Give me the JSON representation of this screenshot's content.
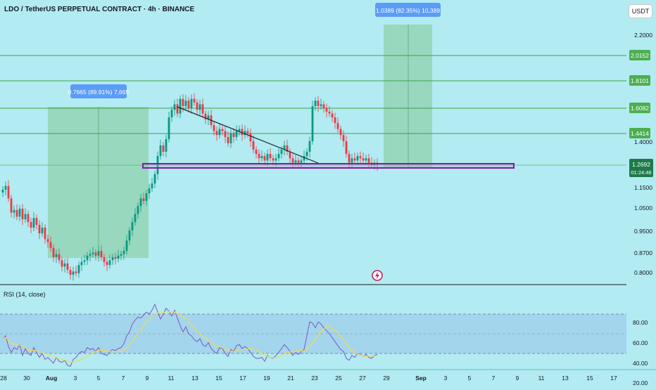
{
  "header": {
    "title": "LDO / TetherUS PERPETUAL CONTRACT · 4h · BINANCE",
    "currency": "USDT"
  },
  "colors": {
    "background": "#b2ebf2",
    "candle_up": "#089981",
    "candle_down": "#f23645",
    "level_line": "#43a047",
    "level_badge": "#4caf50",
    "measure_zone": "#81c995",
    "measure_badge": "#5b9cf6",
    "support_box": "#7b1fa2",
    "rsi_line": "#7e57c2",
    "rsi_ma": "#f5d94c"
  },
  "price_axis": {
    "ticks": [
      "2.2000",
      "1.4000",
      "1.1500",
      "1.0500",
      "0.9500",
      "0.8700",
      "0.8000"
    ],
    "levels": [
      "2.0152",
      "1.8101",
      "1.6082",
      "1.4414"
    ],
    "current_price": "1.2692",
    "countdown": "01:24:48"
  },
  "measures": [
    {
      "label": "0.7665 (89.91%) 7,665"
    },
    {
      "label": "1.0389 (82.35%) 10,389"
    }
  ],
  "rsi": {
    "label": "RSI (14, close)",
    "ticks": [
      "80.00",
      "60.00",
      "40.00",
      "20.00"
    ]
  },
  "time_axis": {
    "labels": [
      "28",
      "30",
      "Aug",
      "3",
      "5",
      "7",
      "9",
      "11",
      "13",
      "15",
      "17",
      "19",
      "21",
      "23",
      "25",
      "27",
      "29",
      "Sep",
      "3",
      "5",
      "7",
      "9",
      "11",
      "13",
      "15",
      "17"
    ]
  },
  "chart_data": {
    "type": "candlestick",
    "symbol": "LDO / TetherUS PERPETUAL CONTRACT",
    "interval": "4h",
    "exchange": "BINANCE",
    "y_scale": "log",
    "ylim": [
      0.78,
      2.45
    ],
    "support_zone": [
      1.255,
      1.285
    ],
    "resistance_levels": [
      2.0152,
      1.8101,
      1.6082,
      1.4414
    ],
    "trendline": [
      [
        252,
        1.66
      ],
      [
        452,
        1.275
      ]
    ],
    "measures": [
      {
        "x": [
          68,
          211
        ],
        "y": [
          0.85,
          1.615
        ],
        "change": 0.7665,
        "percent": 89.91
      },
      {
        "x": [
          545,
          614
        ],
        "y": [
          1.265,
          2.31
        ],
        "change": 1.0389,
        "percent": 82.35
      }
    ],
    "closes": [
      [
        4,
        1.165
      ],
      [
        8,
        1.18
      ],
      [
        12,
        1.13
      ],
      [
        16,
        1.075
      ],
      [
        20,
        1.085
      ],
      [
        24,
        1.06
      ],
      [
        28,
        1.09
      ],
      [
        32,
        1.05
      ],
      [
        36,
        1.07
      ],
      [
        40,
        1.04
      ],
      [
        44,
        1.02
      ],
      [
        48,
        1.055
      ],
      [
        52,
        1.03
      ],
      [
        56,
        1.0
      ],
      [
        60,
        1.02
      ],
      [
        64,
        0.98
      ],
      [
        68,
        0.97
      ],
      [
        72,
        0.95
      ],
      [
        76,
        0.92
      ],
      [
        80,
        0.93
      ],
      [
        84,
        0.91
      ],
      [
        88,
        0.89
      ],
      [
        92,
        0.9
      ],
      [
        96,
        0.88
      ],
      [
        100,
        0.865
      ],
      [
        104,
        0.875
      ],
      [
        108,
        0.87
      ],
      [
        112,
        0.895
      ],
      [
        116,
        0.905
      ],
      [
        120,
        0.91
      ],
      [
        124,
        0.925
      ],
      [
        128,
        0.93
      ],
      [
        132,
        0.935
      ],
      [
        136,
        0.925
      ],
      [
        140,
        0.94
      ],
      [
        144,
        0.92
      ],
      [
        148,
        0.905
      ],
      [
        152,
        0.895
      ],
      [
        156,
        0.91
      ],
      [
        160,
        0.92
      ],
      [
        164,
        0.915
      ],
      [
        168,
        0.925
      ],
      [
        172,
        0.93
      ],
      [
        176,
        0.94
      ],
      [
        180,
        0.975
      ],
      [
        184,
        1.01
      ],
      [
        188,
        1.04
      ],
      [
        192,
        1.07
      ],
      [
        196,
        1.1
      ],
      [
        200,
        1.13
      ],
      [
        204,
        1.12
      ],
      [
        208,
        1.15
      ],
      [
        212,
        1.17
      ],
      [
        216,
        1.19
      ],
      [
        220,
        1.23
      ],
      [
        224,
        1.31
      ],
      [
        228,
        1.36
      ],
      [
        232,
        1.33
      ],
      [
        236,
        1.39
      ],
      [
        240,
        1.5
      ],
      [
        244,
        1.54
      ],
      [
        248,
        1.57
      ],
      [
        252,
        1.52
      ],
      [
        256,
        1.6
      ],
      [
        260,
        1.56
      ],
      [
        264,
        1.59
      ],
      [
        268,
        1.55
      ],
      [
        272,
        1.6
      ],
      [
        276,
        1.58
      ],
      [
        280,
        1.54
      ],
      [
        284,
        1.57
      ],
      [
        288,
        1.52
      ],
      [
        292,
        1.49
      ],
      [
        296,
        1.51
      ],
      [
        300,
        1.46
      ],
      [
        304,
        1.43
      ],
      [
        308,
        1.41
      ],
      [
        312,
        1.44
      ],
      [
        316,
        1.43
      ],
      [
        320,
        1.4
      ],
      [
        324,
        1.37
      ],
      [
        328,
        1.42
      ],
      [
        332,
        1.4
      ],
      [
        336,
        1.43
      ],
      [
        340,
        1.44
      ],
      [
        344,
        1.41
      ],
      [
        348,
        1.43
      ],
      [
        352,
        1.42
      ],
      [
        356,
        1.38
      ],
      [
        360,
        1.34
      ],
      [
        364,
        1.32
      ],
      [
        368,
        1.3
      ],
      [
        372,
        1.31
      ],
      [
        376,
        1.29
      ],
      [
        380,
        1.32
      ],
      [
        384,
        1.3
      ],
      [
        388,
        1.29
      ],
      [
        392,
        1.3
      ],
      [
        396,
        1.32
      ],
      [
        400,
        1.34
      ],
      [
        404,
        1.36
      ],
      [
        408,
        1.33
      ],
      [
        412,
        1.3
      ],
      [
        416,
        1.28
      ],
      [
        420,
        1.29
      ],
      [
        424,
        1.28
      ],
      [
        428,
        1.29
      ],
      [
        432,
        1.31
      ],
      [
        436,
        1.33
      ],
      [
        440,
        1.38
      ],
      [
        444,
        1.56
      ],
      [
        448,
        1.59
      ],
      [
        452,
        1.56
      ],
      [
        456,
        1.57
      ],
      [
        460,
        1.55
      ],
      [
        464,
        1.53
      ],
      [
        468,
        1.52
      ],
      [
        472,
        1.5
      ],
      [
        476,
        1.47
      ],
      [
        480,
        1.44
      ],
      [
        484,
        1.41
      ],
      [
        488,
        1.38
      ],
      [
        492,
        1.32
      ],
      [
        496,
        1.28
      ],
      [
        500,
        1.3
      ],
      [
        504,
        1.29
      ],
      [
        508,
        1.31
      ],
      [
        512,
        1.3
      ],
      [
        516,
        1.29
      ],
      [
        520,
        1.3
      ],
      [
        524,
        1.28
      ],
      [
        528,
        1.27
      ],
      [
        532,
        1.28
      ],
      [
        536,
        1.27
      ]
    ],
    "rsi": [
      [
        4,
        55
      ],
      [
        8,
        58
      ],
      [
        12,
        47
      ],
      [
        16,
        41
      ],
      [
        20,
        46
      ],
      [
        24,
        44
      ],
      [
        28,
        49
      ],
      [
        32,
        38
      ],
      [
        36,
        45
      ],
      [
        40,
        40
      ],
      [
        44,
        38
      ],
      [
        48,
        46
      ],
      [
        52,
        41
      ],
      [
        56,
        36
      ],
      [
        60,
        40
      ],
      [
        64,
        34
      ],
      [
        68,
        36
      ],
      [
        72,
        33
      ],
      [
        76,
        30
      ],
      [
        80,
        36
      ],
      [
        84,
        32
      ],
      [
        88,
        31
      ],
      [
        92,
        33
      ],
      [
        96,
        28
      ],
      [
        100,
        27
      ],
      [
        104,
        34
      ],
      [
        108,
        36
      ],
      [
        112,
        40
      ],
      [
        116,
        42
      ],
      [
        120,
        41
      ],
      [
        124,
        46
      ],
      [
        128,
        44
      ],
      [
        132,
        45
      ],
      [
        136,
        42
      ],
      [
        140,
        46
      ],
      [
        144,
        40
      ],
      [
        148,
        39
      ],
      [
        152,
        38
      ],
      [
        156,
        42
      ],
      [
        160,
        44
      ],
      [
        164,
        43
      ],
      [
        168,
        45
      ],
      [
        172,
        46
      ],
      [
        176,
        50
      ],
      [
        180,
        58
      ],
      [
        184,
        62
      ],
      [
        188,
        70
      ],
      [
        192,
        74
      ],
      [
        196,
        77
      ],
      [
        200,
        76
      ],
      [
        204,
        79
      ],
      [
        208,
        82
      ],
      [
        212,
        80
      ],
      [
        216,
        84
      ],
      [
        220,
        90
      ],
      [
        224,
        82
      ],
      [
        228,
        75
      ],
      [
        232,
        80
      ],
      [
        236,
        86
      ],
      [
        240,
        83
      ],
      [
        244,
        78
      ],
      [
        248,
        84
      ],
      [
        252,
        76
      ],
      [
        256,
        68
      ],
      [
        260,
        62
      ],
      [
        264,
        67
      ],
      [
        268,
        60
      ],
      [
        272,
        58
      ],
      [
        276,
        54
      ],
      [
        280,
        52
      ],
      [
        284,
        55
      ],
      [
        288,
        49
      ],
      [
        292,
        47
      ],
      [
        296,
        51
      ],
      [
        300,
        45
      ],
      [
        304,
        42
      ],
      [
        308,
        40
      ],
      [
        312,
        46
      ],
      [
        316,
        45
      ],
      [
        320,
        40
      ],
      [
        324,
        37
      ],
      [
        328,
        44
      ],
      [
        332,
        42
      ],
      [
        336,
        48
      ],
      [
        340,
        49
      ],
      [
        344,
        45
      ],
      [
        348,
        47
      ],
      [
        352,
        45
      ],
      [
        356,
        41
      ],
      [
        360,
        37
      ],
      [
        364,
        35
      ],
      [
        368,
        35
      ],
      [
        372,
        36
      ],
      [
        376,
        32
      ],
      [
        380,
        38
      ],
      [
        384,
        36
      ],
      [
        388,
        35
      ],
      [
        392,
        38
      ],
      [
        396,
        41
      ],
      [
        400,
        45
      ],
      [
        404,
        49
      ],
      [
        408,
        46
      ],
      [
        412,
        42
      ],
      [
        416,
        38
      ],
      [
        420,
        41
      ],
      [
        424,
        39
      ],
      [
        428,
        42
      ],
      [
        432,
        44
      ],
      [
        436,
        58
      ],
      [
        440,
        72
      ],
      [
        444,
        71
      ],
      [
        448,
        66
      ],
      [
        452,
        72
      ],
      [
        456,
        70
      ],
      [
        460,
        66
      ],
      [
        464,
        63
      ],
      [
        468,
        60
      ],
      [
        472,
        56
      ],
      [
        476,
        52
      ],
      [
        480,
        48
      ],
      [
        484,
        44
      ],
      [
        488,
        42
      ],
      [
        492,
        35
      ],
      [
        496,
        33
      ],
      [
        500,
        38
      ],
      [
        504,
        36
      ],
      [
        508,
        40
      ],
      [
        512,
        39
      ],
      [
        516,
        37
      ],
      [
        520,
        39
      ],
      [
        524,
        36
      ],
      [
        528,
        35
      ],
      [
        532,
        38
      ],
      [
        536,
        39
      ]
    ]
  }
}
